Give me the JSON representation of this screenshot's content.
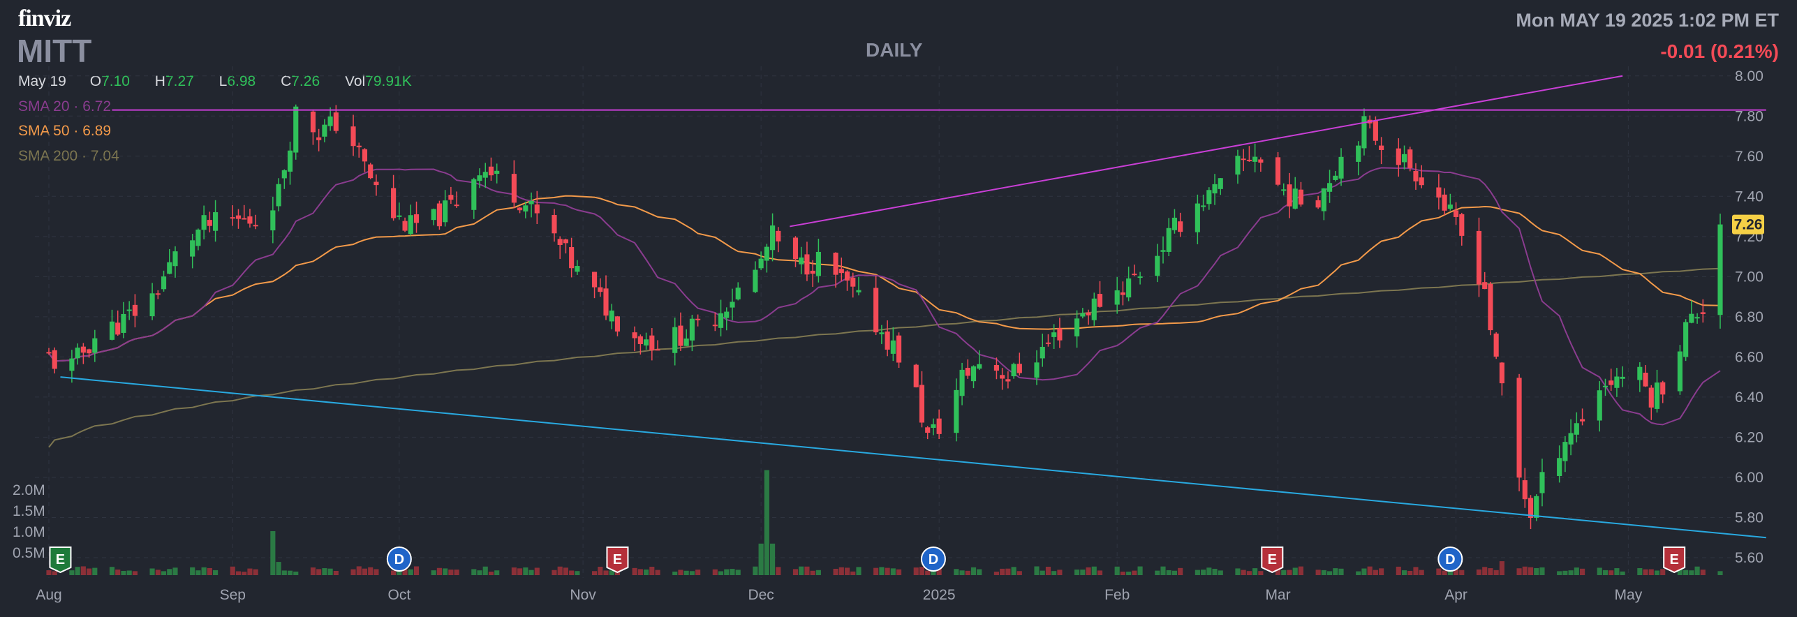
{
  "header": {
    "logo": "finviz",
    "ticker": "MITT",
    "timeframe": "DAILY",
    "datetime": "Mon MAY 19 2025 1:02 PM ET",
    "change": "-0.01 (0.21%)"
  },
  "ohlc": {
    "date": "May 19",
    "open_label": "O",
    "open": "7.10",
    "high_label": "H",
    "high": "7.27",
    "low_label": "L",
    "low": "6.98",
    "close_label": "C",
    "close": "7.26",
    "vol_label": "Vol",
    "vol": "79.91K"
  },
  "legend": {
    "sma20": "SMA 20 · 6.72",
    "sma50": "SMA 50 · 6.89",
    "sma200": "SMA 200 · 7.04"
  },
  "colors": {
    "up": "#30c05a",
    "down": "#f44b57",
    "sma20": "#8a3c8f",
    "sma50": "#f39a4a",
    "sma200": "#7d7650",
    "trendline": "#c93fd6",
    "support": "#29a9e0",
    "price_tag": "#f5d046"
  },
  "chart_data": {
    "type": "candlestick",
    "price_axis": {
      "ylim": [
        5.52,
        8.02
      ],
      "ticks": [
        "8.00",
        "7.80",
        "7.60",
        "7.40",
        "7.20",
        "7.00",
        "6.80",
        "6.60",
        "6.40",
        "6.20",
        "6.00",
        "5.80",
        "5.60"
      ]
    },
    "volume_axis": {
      "ticks": [
        "2.0M",
        "1.5M",
        "1.0M",
        "0.5M"
      ]
    },
    "x_labels": [
      "Aug",
      "Sep",
      "Oct",
      "Nov",
      "Dec",
      "2025",
      "Feb",
      "Mar",
      "Apr",
      "May"
    ],
    "x_label_days": [
      1,
      33,
      62,
      94,
      125,
      156,
      187,
      215,
      246,
      276
    ],
    "last_price": "7.26",
    "session_start": "2024-08-01",
    "session_end": "2025-05-19",
    "price_path": [
      [
        1,
        6.6
      ],
      [
        4,
        6.52
      ],
      [
        9,
        6.7
      ],
      [
        14,
        6.78
      ],
      [
        19,
        6.9
      ],
      [
        24,
        7.15
      ],
      [
        28,
        7.25
      ],
      [
        33,
        7.28
      ],
      [
        37,
        7.28
      ],
      [
        41,
        7.42
      ],
      [
        44,
        7.82
      ],
      [
        48,
        7.72
      ],
      [
        52,
        7.78
      ],
      [
        56,
        7.55
      ],
      [
        60,
        7.32
      ],
      [
        64,
        7.25
      ],
      [
        68,
        7.28
      ],
      [
        72,
        7.38
      ],
      [
        76,
        7.55
      ],
      [
        81,
        7.45
      ],
      [
        86,
        7.3
      ],
      [
        90,
        7.15
      ],
      [
        94,
        6.98
      ],
      [
        98,
        6.85
      ],
      [
        102,
        6.72
      ],
      [
        107,
        6.67
      ],
      [
        112,
        6.72
      ],
      [
        116,
        6.78
      ],
      [
        120,
        6.9
      ],
      [
        124,
        7.02
      ],
      [
        127,
        7.2
      ],
      [
        131,
        7.05
      ],
      [
        135,
        7.08
      ],
      [
        140,
        6.95
      ],
      [
        144,
        6.8
      ],
      [
        148,
        6.65
      ],
      [
        151,
        6.52
      ],
      [
        154,
        6.2
      ],
      [
        157,
        6.28
      ],
      [
        160,
        6.5
      ],
      [
        164,
        6.6
      ],
      [
        168,
        6.5
      ],
      [
        172,
        6.58
      ],
      [
        176,
        6.7
      ],
      [
        180,
        6.8
      ],
      [
        184,
        6.88
      ],
      [
        188,
        6.95
      ],
      [
        192,
        7.05
      ],
      [
        196,
        7.2
      ],
      [
        200,
        7.35
      ],
      [
        204,
        7.42
      ],
      [
        208,
        7.55
      ],
      [
        211,
        7.62
      ],
      [
        214,
        7.48
      ],
      [
        218,
        7.38
      ],
      [
        222,
        7.4
      ],
      [
        226,
        7.6
      ],
      [
        230,
        7.75
      ],
      [
        234,
        7.65
      ],
      [
        238,
        7.55
      ],
      [
        242,
        7.45
      ],
      [
        245,
        7.3
      ],
      [
        248,
        7.15
      ],
      [
        251,
        6.95
      ],
      [
        253,
        6.55
      ],
      [
        255,
        6.35
      ],
      [
        257,
        6.0
      ],
      [
        259,
        5.82
      ],
      [
        262,
        6.05
      ],
      [
        265,
        6.2
      ],
      [
        268,
        6.3
      ],
      [
        271,
        6.45
      ],
      [
        274,
        6.5
      ],
      [
        277,
        6.55
      ],
      [
        280,
        6.4
      ],
      [
        283,
        6.5
      ],
      [
        286,
        6.75
      ],
      [
        289,
        6.85
      ],
      [
        292,
        7.05
      ],
      [
        294,
        7.26
      ]
    ],
    "volume_spikes": [
      [
        40,
        180
      ],
      [
        126,
        430
      ],
      [
        255,
        190
      ]
    ],
    "trendlines": [
      {
        "name": "resistance-horizontal",
        "from": [
          12,
          7.83
        ],
        "to": [
          300,
          7.83
        ]
      },
      {
        "name": "rising-resistance",
        "from": [
          130,
          7.25
        ],
        "to": [
          275,
          8.0
        ]
      },
      {
        "name": "falling-support",
        "from": [
          3,
          6.5
        ],
        "to": [
          300,
          5.7
        ]
      }
    ],
    "events": [
      {
        "type": "E",
        "day": 3
      },
      {
        "type": "D",
        "day": 62
      },
      {
        "type": "E",
        "day": 100
      },
      {
        "type": "D",
        "day": 155
      },
      {
        "type": "E",
        "day": 214
      },
      {
        "type": "D",
        "day": 245
      },
      {
        "type": "E",
        "day": 284
      }
    ]
  }
}
